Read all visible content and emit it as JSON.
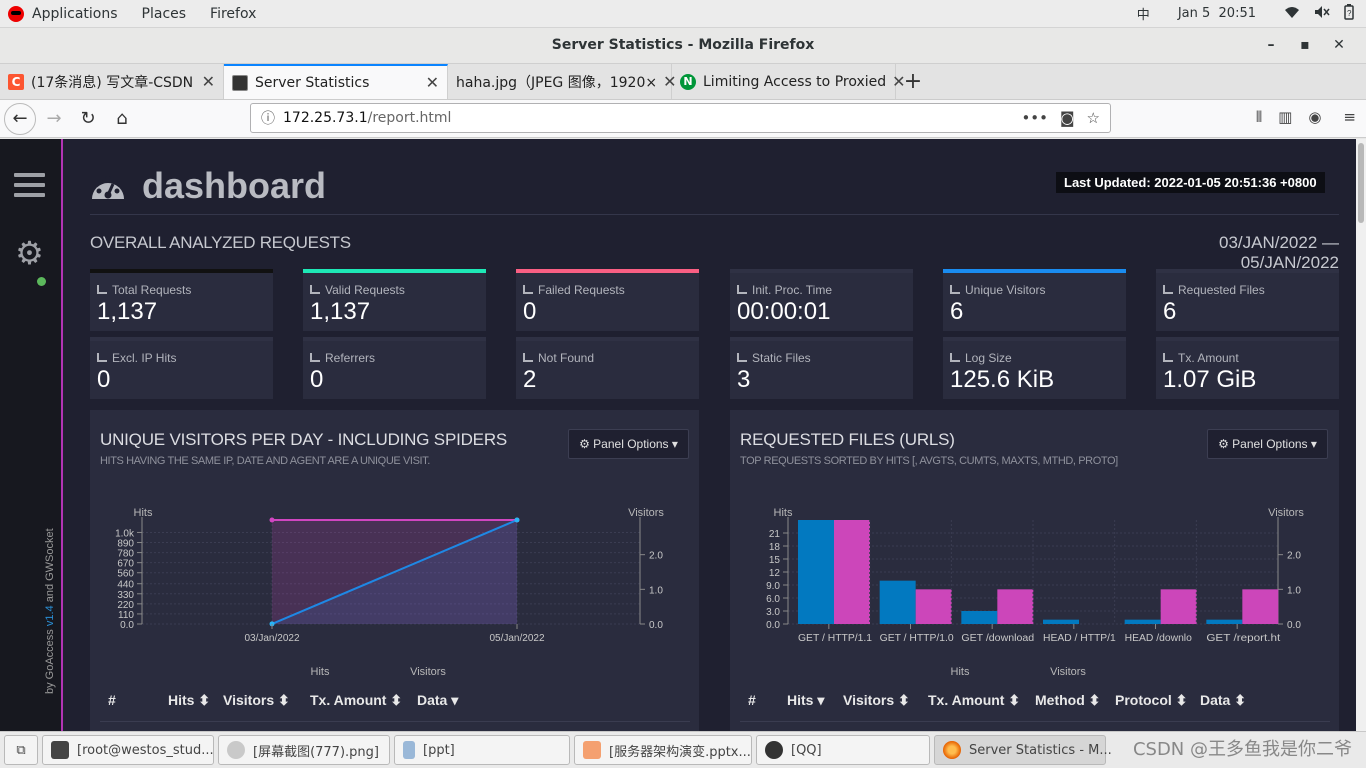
{
  "system": {
    "menu": [
      "Applications",
      "Places",
      "Firefox"
    ],
    "ime": "中",
    "date": "Jan 5",
    "time": "20:51"
  },
  "window": {
    "title": "Server Statistics - Mozilla Firefox",
    "controls": [
      "minimize",
      "maximize",
      "close"
    ]
  },
  "tabs": [
    {
      "label": "(17条消息) 写文章-CSDN",
      "favicon": "csdn-icon"
    },
    {
      "label": "Server Statistics",
      "favicon": "terminal-icon"
    },
    {
      "label": "haha.jpg（JPEG 图像，1920×",
      "favicon": "none"
    },
    {
      "label": "Limiting Access to Proxied",
      "favicon": "nginx-icon"
    }
  ],
  "address": {
    "host": "172.25.73.1",
    "path": "/report.html"
  },
  "sidebar": {
    "version_prefix": "by GoAccess ",
    "version": "v1.4",
    "version_suffix": " and GWSocket"
  },
  "dashboard": {
    "title": "dashboard",
    "last_updated": "Last Updated: 2022-01-05 20:51:36 +0800",
    "section_title": "OVERALL ANALYZED REQUESTS",
    "date_range": "03/JAN/2022 — 05/JAN/2022",
    "cards": [
      {
        "label": "Total Requests",
        "value": "1,137",
        "accent": "#111111"
      },
      {
        "label": "Valid Requests",
        "value": "1,137",
        "accent": "#1ee8b6"
      },
      {
        "label": "Failed Requests",
        "value": "0",
        "accent": "#f95f83"
      },
      {
        "label": "Init. Proc. Time",
        "value": "00:00:01",
        "accent": "#2f3144"
      },
      {
        "label": "Unique Visitors",
        "value": "6",
        "accent": "#1a8cf0"
      },
      {
        "label": "Requested Files",
        "value": "6",
        "accent": "#2f3144"
      },
      {
        "label": "Excl. IP Hits",
        "value": "0",
        "accent": "#2f3144"
      },
      {
        "label": "Referrers",
        "value": "0",
        "accent": "#2f3144"
      },
      {
        "label": "Not Found",
        "value": "2",
        "accent": "#2f3144"
      },
      {
        "label": "Static Files",
        "value": "3",
        "accent": "#2f3144"
      },
      {
        "label": "Log Size",
        "value": "125.6 KiB",
        "accent": "#2f3144"
      },
      {
        "label": "Tx. Amount",
        "value": "1.07 GiB",
        "accent": "#2f3144"
      }
    ]
  },
  "panel_visitors": {
    "title": "UNIQUE VISITORS PER DAY - INCLUDING SPIDERS",
    "subtitle": "HITS HAVING THE SAME IP, DATE AND AGENT ARE A UNIQUE VISIT.",
    "options_label": "Panel Options",
    "columns": [
      "#",
      "Hits",
      "Visitors",
      "Tx. Amount",
      "Data"
    ]
  },
  "panel_files": {
    "title": "REQUESTED FILES (URLS)",
    "subtitle": "TOP REQUESTS SORTED BY HITS [, AVGTS, CUMTS, MAXTS, MTHD, PROTO]",
    "options_label": "Panel Options",
    "columns": [
      "#",
      "Hits",
      "Visitors",
      "Tx. Amount",
      "Method",
      "Protocol",
      "Data"
    ]
  },
  "chart_data": [
    {
      "type": "line",
      "title": "UNIQUE VISITORS PER DAY - INCLUDING SPIDERS",
      "x": [
        "03/Jan/2022",
        "05/Jan/2022"
      ],
      "series": [
        {
          "name": "Hits",
          "values": [
            1,
            1136
          ],
          "color": "#1e88e5",
          "axis": "left"
        },
        {
          "name": "Visitors",
          "values": [
            3,
            3
          ],
          "color": "#d046c1",
          "axis": "right"
        }
      ],
      "ylabel_left": "Hits",
      "ylabel_right": "Visitors",
      "yticks_left": [
        "0.0",
        "110",
        "220",
        "330",
        "440",
        "560",
        "670",
        "780",
        "890",
        "1.0k"
      ],
      "yticks_right": [
        "0.0",
        "1.0",
        "2.0"
      ],
      "ylim_left": [
        0,
        1136
      ],
      "ylim_right": [
        0,
        3
      ],
      "legend": [
        "Hits",
        "Visitors"
      ],
      "grid": true
    },
    {
      "type": "bar",
      "title": "REQUESTED FILES (URLS)",
      "categories": [
        "GET / HTTP/1.1",
        "GET / HTTP/1.0",
        "GET /download",
        "HEAD / HTTP/1",
        "HEAD /downlo",
        "GET /report.ht"
      ],
      "series": [
        {
          "name": "Hits",
          "values": [
            24,
            10,
            3,
            1,
            1,
            1
          ],
          "color": "#0279c0",
          "axis": "left"
        },
        {
          "name": "Visitors",
          "values": [
            3,
            1,
            1,
            0,
            1,
            1
          ],
          "color": "#cc46ba",
          "axis": "right"
        }
      ],
      "ylabel_left": "Hits",
      "ylabel_right": "Visitors",
      "yticks_left": [
        "0.0",
        "3.0",
        "6.0",
        "9.0",
        "12",
        "15",
        "18",
        "21"
      ],
      "yticks_right": [
        "0.0",
        "1.0",
        "2.0"
      ],
      "ylim_left": [
        0,
        24
      ],
      "ylim_right": [
        0,
        3
      ],
      "legend": [
        "Hits",
        "Visitors"
      ],
      "grid": true
    }
  ],
  "taskbar": [
    {
      "label": "[root@westos_stud...",
      "icon": "terminal-icon"
    },
    {
      "label": "[屏幕截图(777).png]",
      "icon": "image-viewer-icon"
    },
    {
      "label": "[ppt]",
      "icon": "folder-icon"
    },
    {
      "label": "[服务器架构演变.pptx...",
      "icon": "presentation-icon"
    },
    {
      "label": "[QQ]",
      "icon": "qq-icon"
    },
    {
      "label": "Server Statistics - M...",
      "icon": "firefox-icon"
    }
  ],
  "watermark": "CSDN @王多鱼我是你二爷"
}
